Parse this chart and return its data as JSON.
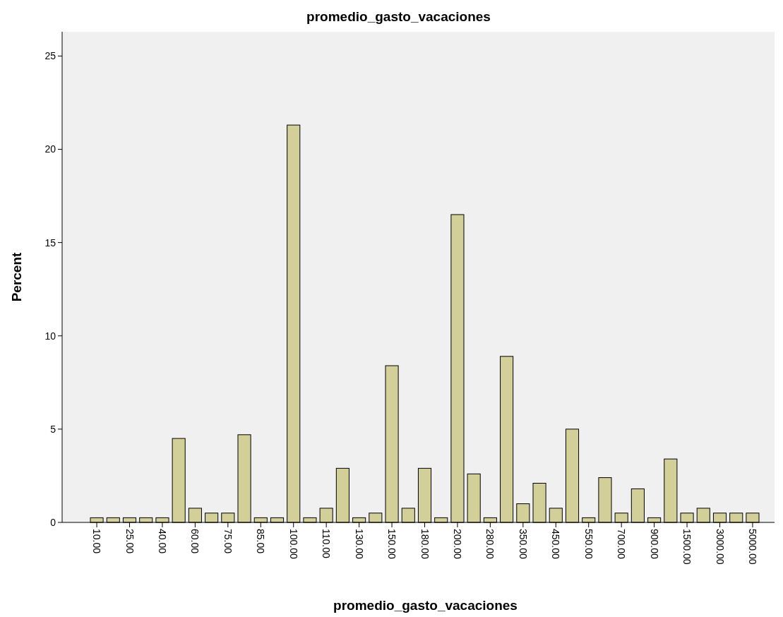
{
  "chart_data": {
    "type": "bar",
    "title": "promedio_gasto_vacaciones",
    "xlabel": "promedio_gasto_vacaciones",
    "ylabel": "Percent",
    "categories": [
      "10.00",
      null,
      "25.00",
      null,
      "40.00",
      null,
      "60.00",
      null,
      "75.00",
      null,
      "85.00",
      null,
      "100.00",
      null,
      "110.00",
      null,
      "130.00",
      null,
      "150.00",
      null,
      "180.00",
      null,
      "200.00",
      null,
      "280.00",
      null,
      "350.00",
      null,
      "450.00",
      null,
      "550.00",
      null,
      "700.00",
      null,
      "900.00",
      null,
      "1500.00",
      null,
      "3000.00",
      null,
      "5000.00"
    ],
    "values": [
      0.25,
      0.25,
      0.25,
      0.25,
      0.25,
      4.5,
      0.76,
      0.5,
      0.5,
      4.7,
      0.25,
      0.25,
      21.3,
      0.25,
      0.76,
      2.9,
      0.25,
      0.5,
      8.4,
      0.76,
      2.9,
      0.25,
      16.5,
      2.6,
      0.25,
      8.9,
      1.0,
      2.1,
      0.76,
      5.0,
      0.25,
      2.4,
      0.5,
      1.8,
      0.25,
      3.4,
      0.5,
      0.76,
      0.5,
      0.5,
      0.5
    ],
    "color": "#d3cf98",
    "ylim": [
      0,
      26.3
    ],
    "yticks": [
      0,
      5,
      10,
      15,
      20,
      25
    ],
    "grid": false
  }
}
